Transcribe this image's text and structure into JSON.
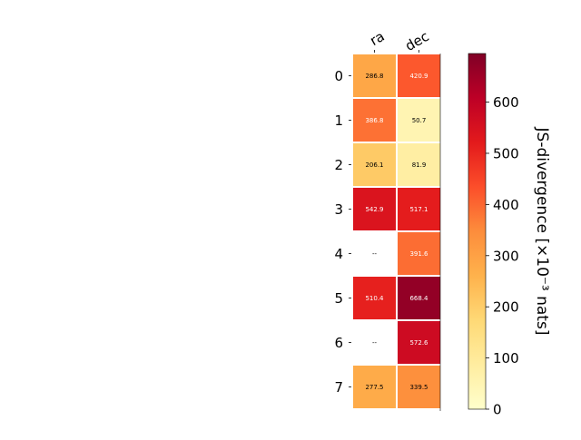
{
  "chart_data": {
    "type": "heatmap",
    "columns": [
      "ra",
      "dec"
    ],
    "rows": [
      "0",
      "1",
      "2",
      "3",
      "4",
      "5",
      "6",
      "7"
    ],
    "values": [
      [
        286.8,
        420.9
      ],
      [
        386.8,
        50.7
      ],
      [
        206.1,
        81.9
      ],
      [
        542.9,
        517.1
      ],
      [
        null,
        391.6
      ],
      [
        510.4,
        668.4
      ],
      [
        null,
        572.6
      ],
      [
        277.5,
        339.5
      ]
    ],
    "missing_label": "--",
    "colorbar": {
      "label": "JS-divergence [×10⁻³ nats]",
      "range": [
        0,
        695
      ],
      "ticks": [
        0,
        100,
        200,
        300,
        400,
        500,
        600
      ],
      "colormap": "YlOrRd"
    }
  }
}
